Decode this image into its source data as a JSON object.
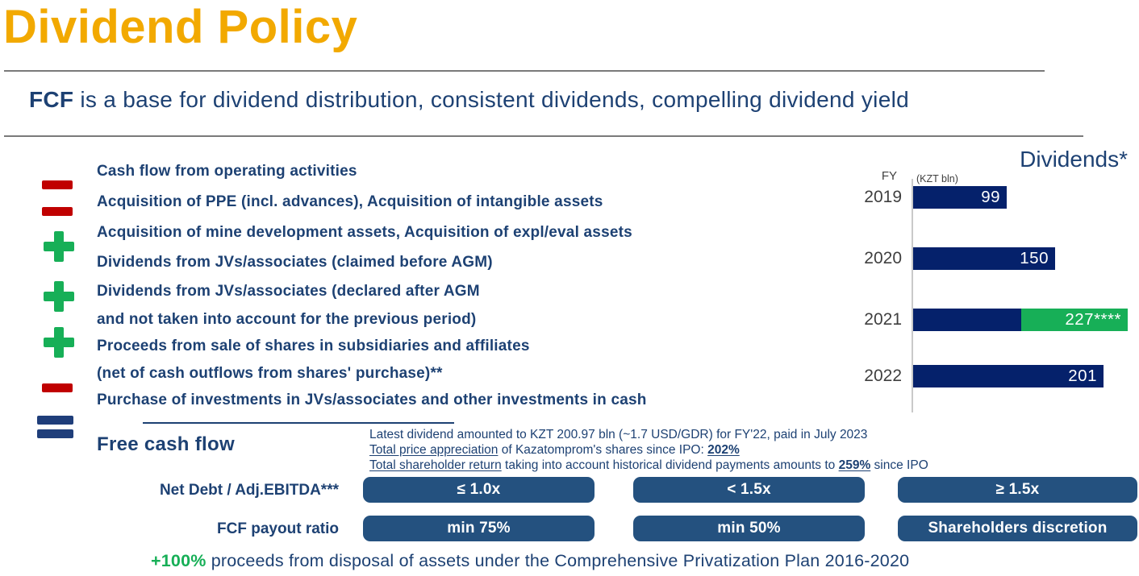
{
  "page": {
    "title": "Dividend Policy"
  },
  "subtitle": {
    "segments": [
      {
        "t": "FCF",
        "b": true
      },
      {
        "t": " is a base for dividend distribution, consistent dividends, compelling dividend yield"
      }
    ]
  },
  "fcf_waterfall": {
    "lines": [
      "Cash flow from operating activities",
      "Acquisition of PPE (incl. advances), Acquisition of intangible assets",
      "Acquisition of mine development assets, Acquisition of expl/eval assets",
      "Dividends from JVs/associates (claimed before AGM)",
      "Dividends from JVs/associates (declared after AGM",
      "and not taken into account for the previous period)",
      "Proceeds from sale of shares in subsidiaries and affiliates",
      "(net of cash outflows from shares' purchase)**",
      "Purchase of investments in JVs/associates and other investments in cash"
    ],
    "operators": [
      "minus",
      "minus",
      "plus",
      "plus",
      "plus",
      "minus",
      "equals"
    ],
    "result_label": "Free cash flow"
  },
  "dividend_notes": {
    "lines": [
      [
        {
          "t": "Latest dividend amounted to KZT 200.97 bln (~1.7 USD/GDR) for FY'22, paid in July 2023"
        }
      ],
      [
        {
          "t": "Total price appreciation",
          "u": true
        },
        {
          "t": " of Kazatomprom's shares since IPO: "
        },
        {
          "t": "202%",
          "b": true,
          "u": true
        }
      ],
      [
        {
          "t": "Total shareholder return",
          "u": true
        },
        {
          "t": " taking into account historical dividend payments amounts to "
        },
        {
          "t": "259%",
          "b": true,
          "u": true
        },
        {
          "t": " since IPO"
        }
      ]
    ]
  },
  "policy_table": {
    "rows": [
      {
        "label": "Net Debt / Adj.EBITDA***",
        "cells": [
          "≤ 1.0x",
          "< 1.5x",
          "≥ 1.5x"
        ]
      },
      {
        "label": "FCF payout ratio",
        "cells": [
          "min 75%",
          "min 50%",
          "Shareholders discretion"
        ]
      }
    ]
  },
  "footnote": {
    "segments": [
      {
        "t": "+100%",
        "b": true,
        "green": true
      },
      {
        "t": " proceeds from disposal of assets under the Comprehensive Privatization Plan 2016-2020"
      }
    ]
  },
  "chart_data": {
    "type": "bar",
    "orientation": "horizontal",
    "title": "Dividends*",
    "axis_label": "FY",
    "unit_label": "(KZT bln)",
    "categories": [
      "2019",
      "2020",
      "2021",
      "2022"
    ],
    "series": [
      {
        "name": "dividends-paid",
        "color": "#05216B",
        "values": [
          99,
          150,
          114,
          201
        ]
      },
      {
        "name": "privatization-proceeds",
        "color": "#17AF57",
        "values": [
          0,
          0,
          113,
          0
        ]
      }
    ],
    "totals": [
      99,
      150,
      227,
      201
    ],
    "bar_labels": [
      "99",
      "150",
      "227****",
      "201"
    ],
    "xlim": [
      0,
      240
    ],
    "legend": "none",
    "grid": "off"
  },
  "colors": {
    "accent_orange": "#F2A900",
    "navy_text": "#1D4173",
    "bar_navy": "#05216B",
    "table_blue": "#24517F",
    "green": "#17AF57",
    "red": "#C00000"
  }
}
